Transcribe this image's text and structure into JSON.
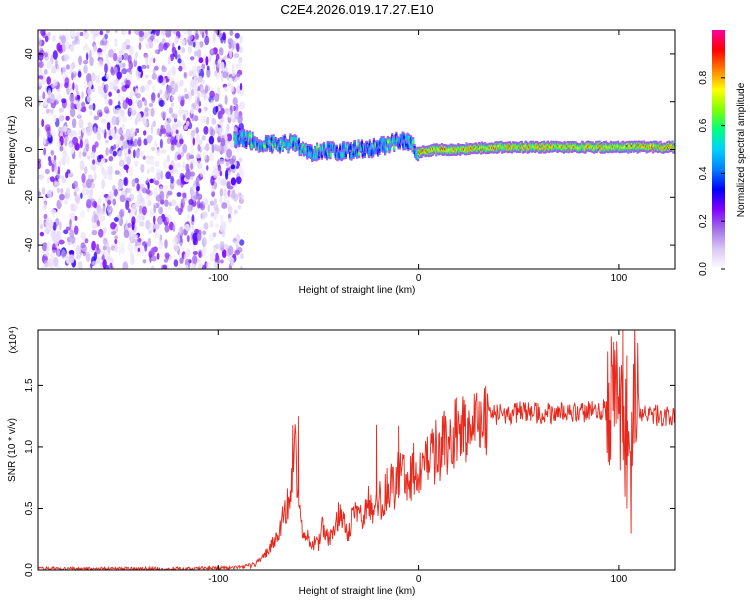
{
  "title": "C2E4.2026.019.17.27.E10",
  "chart_data": [
    {
      "type": "heatmap",
      "title": "C2E4.2026.019.17.27.E10",
      "xlabel": "Height of straight line (km)",
      "ylabel": "Frequency (Hz)",
      "xlim": [
        -190,
        128
      ],
      "ylim": [
        -50,
        50
      ],
      "x_ticks": [
        -100,
        0,
        100
      ],
      "y_ticks": [
        -40,
        -20,
        0,
        20,
        40
      ],
      "colorbar": {
        "label": "Normalized spectral amplitude",
        "range": [
          0,
          1
        ],
        "ticks": [
          0.0,
          0.2,
          0.4,
          0.6,
          0.8
        ],
        "colormap": [
          "#ffffff",
          "#d9c8f5",
          "#a070e8",
          "#8000ff",
          "#0000ff",
          "#0080ff",
          "#00d0ff",
          "#00ff80",
          "#80ff00",
          "#ffff00",
          "#ff8000",
          "#ff0000",
          "#ff00a0"
        ]
      },
      "regions": [
        {
          "name": "noise",
          "x_range": [
            -190,
            -88
          ],
          "f_range": [
            -50,
            50
          ],
          "amplitude": [
            0.02,
            0.2
          ]
        },
        {
          "name": "signal-track",
          "x_range": [
            -92,
            128
          ],
          "amplitude": [
            0.2,
            0.95
          ]
        }
      ],
      "signal_track": {
        "x": [
          -92,
          -80,
          -70,
          -62,
          -55,
          -48,
          -40,
          -30,
          -20,
          -12,
          -8,
          -4,
          0,
          10,
          20,
          40,
          60,
          80,
          100,
          110,
          128
        ],
        "frequency": [
          5,
          3,
          2,
          3,
          -2,
          0,
          -1,
          0,
          1,
          3,
          4,
          2,
          -1,
          0,
          0,
          1,
          1,
          1,
          1,
          1,
          1
        ]
      }
    },
    {
      "type": "line",
      "xlabel": "Height of straight line (km)",
      "ylabel": "SNR (10 * v/v)",
      "y_multiplier": "(x10⁴)",
      "xlim": [
        -190,
        128
      ],
      "ylim": [
        0,
        1.95
      ],
      "x_ticks": [
        -100,
        0,
        100
      ],
      "y_ticks": [
        0.0,
        0.5,
        1.0,
        1.5
      ],
      "series": [
        {
          "name": "SNR",
          "color": "#e8281c",
          "x": [
            -190,
            -120,
            -90,
            -82,
            -78,
            -74,
            -70,
            -67,
            -64,
            -62,
            -60,
            -58,
            -55,
            -52,
            -50,
            -48,
            -45,
            -42,
            -40,
            -38,
            -35,
            -32,
            -30,
            -28,
            -25,
            -22,
            -20,
            -18,
            -15,
            -12,
            -10,
            -8,
            -5,
            -2,
            0,
            3,
            6,
            10,
            15,
            20,
            25,
            30,
            35,
            40,
            50,
            60,
            70,
            80,
            90,
            95,
            98,
            100,
            102,
            104,
            106,
            108,
            110,
            115,
            120,
            128
          ],
          "y": [
            0.01,
            0.01,
            0.02,
            0.04,
            0.1,
            0.18,
            0.3,
            0.45,
            0.6,
            1.15,
            0.55,
            0.3,
            0.25,
            0.22,
            0.2,
            0.35,
            0.25,
            0.3,
            0.45,
            0.4,
            0.3,
            0.5,
            0.45,
            0.4,
            0.55,
            0.45,
            0.6,
            0.55,
            0.7,
            0.65,
            0.8,
            0.75,
            0.7,
            0.85,
            0.82,
            0.88,
            0.92,
            0.98,
            1.05,
            1.12,
            1.18,
            1.22,
            1.25,
            1.27,
            1.28,
            1.28,
            1.28,
            1.28,
            1.3,
            1.3,
            1.45,
            1.6,
            0.9,
            1.3,
            0.7,
            1.55,
            1.28,
            1.27,
            1.25,
            1.23
          ]
        }
      ],
      "annotations": [
        {
          "name": "spike",
          "x": -60,
          "y": 1.25
        },
        {
          "name": "spike",
          "x": -21,
          "y": 1.18
        },
        {
          "name": "spike",
          "x": -10,
          "y": 1.17
        },
        {
          "name": "spike",
          "x": 102,
          "y": 1.97
        },
        {
          "name": "dip",
          "x": 104,
          "y": 0.5
        }
      ]
    }
  ]
}
